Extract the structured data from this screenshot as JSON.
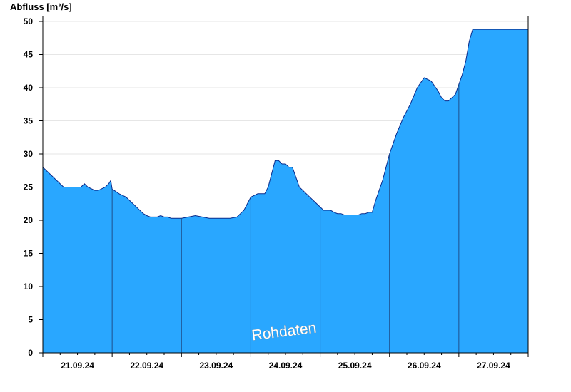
{
  "chart_data": {
    "type": "area",
    "title": "",
    "ylabel": "Abfluss [m³/s]",
    "xlabel": "",
    "ylim": [
      0,
      50
    ],
    "yticks": [
      0,
      5,
      10,
      15,
      20,
      25,
      30,
      35,
      40,
      45,
      50
    ],
    "xlim": [
      0,
      7
    ],
    "day_labels": [
      "21.09.24",
      "22.09.24",
      "23.09.24",
      "24.09.24",
      "25.09.24",
      "26.09.24",
      "27.09.24"
    ],
    "watermark": "Rohdaten",
    "grid": true,
    "colors": {
      "fill": "#29a7ff",
      "line": "#0a2a8a",
      "grid": "#e6e6e6"
    },
    "series": [
      {
        "x": [
          0,
          0.05,
          0.1,
          0.25,
          0.3,
          0.55,
          0.6,
          0.65,
          0.75,
          0.78,
          0.8,
          0.9,
          0.95,
          0.98,
          1.0,
          1.03,
          1.1,
          1.2,
          1.25,
          1.3,
          1.4,
          1.45,
          1.5,
          1.55,
          1.6,
          1.65,
          1.7,
          1.75,
          1.8,
          1.85,
          1.9,
          1.95,
          2.0,
          2.1,
          2.2,
          2.3,
          2.4,
          2.5,
          2.6,
          2.7,
          2.8,
          2.85,
          2.9,
          2.95,
          3.0,
          3.1,
          3.2,
          3.25,
          3.3,
          3.35,
          3.4,
          3.45,
          3.5,
          3.55,
          3.6,
          3.65,
          3.7,
          3.75,
          3.8,
          3.85,
          3.9,
          4.0,
          4.05,
          4.1,
          4.15,
          4.2,
          4.25,
          4.3,
          4.35,
          4.4,
          4.5,
          4.55,
          4.6,
          4.65,
          4.7,
          4.75,
          4.8,
          4.85,
          4.9,
          4.95,
          5.0,
          5.1,
          5.2,
          5.25,
          5.3,
          5.4,
          5.5,
          5.6,
          5.7,
          5.75,
          5.8,
          5.85,
          5.9,
          5.95,
          6.0,
          6.05,
          6.1,
          6.15,
          6.2,
          6.25,
          6.3,
          6.35,
          6.4,
          6.45,
          6.5,
          6.55,
          6.6,
          6.65,
          6.7,
          6.75,
          6.8,
          6.85,
          6.9,
          6.95,
          7.0
        ],
        "y": [
          28,
          27.5,
          27,
          25.5,
          25,
          25,
          25.5,
          25,
          24.5,
          24.5,
          24.5,
          25,
          25.5,
          26,
          24.7,
          24.5,
          24,
          23.5,
          23,
          22.5,
          21.5,
          21,
          20.7,
          20.5,
          20.5,
          20.5,
          20.7,
          20.5,
          20.5,
          20.3,
          20.3,
          20.3,
          20.3,
          20.5,
          20.7,
          20.5,
          20.3,
          20.3,
          20.3,
          20.3,
          20.5,
          21,
          21.5,
          22.5,
          23.5,
          24,
          24,
          25,
          27,
          29,
          29,
          28.5,
          28.5,
          28,
          28,
          26.5,
          25,
          24.5,
          24,
          23.5,
          23,
          22,
          21.5,
          21.5,
          21.5,
          21.2,
          21,
          21,
          20.8,
          20.8,
          20.8,
          20.8,
          21,
          21,
          21.2,
          21.2,
          23,
          24.5,
          26,
          28,
          30,
          33,
          35.5,
          36.5,
          37.5,
          40,
          41.5,
          41,
          39.5,
          38.5,
          38,
          38,
          38.5,
          39,
          40.5,
          42,
          44,
          47,
          48.8,
          48.8,
          48.8,
          48.8,
          48.8,
          48.8,
          48.8,
          48.8,
          48.8,
          48.8,
          48.8,
          48.8,
          48.8,
          48.8,
          48.8,
          48.8,
          48.8
        ]
      }
    ]
  }
}
